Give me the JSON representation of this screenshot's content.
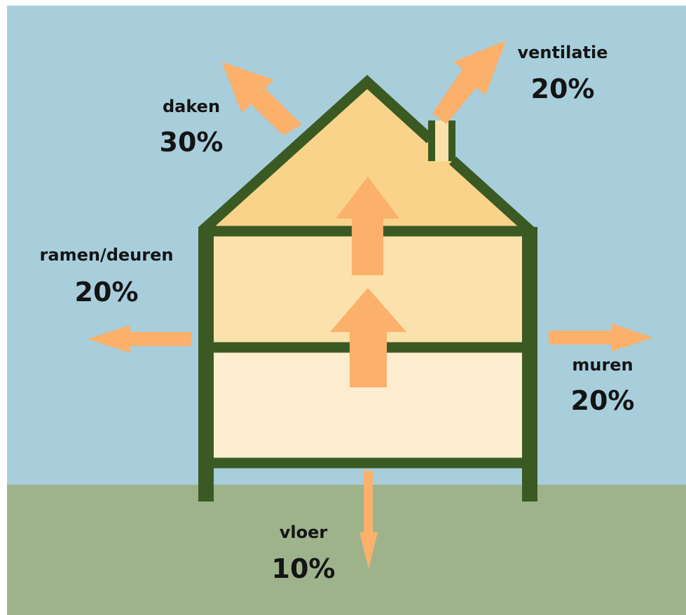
{
  "colors": {
    "sky": "#a8cedc",
    "ground": "#9eb38b",
    "frame": "#3b5a23",
    "roof_fill": "#f9d38a",
    "floor_upper": "#fbe1ab",
    "floor_lower": "#fdedcf",
    "arrow": "#fbb06b",
    "text": "#141414"
  },
  "losses": [
    {
      "id": "daken",
      "name": "daken",
      "value": "30%",
      "percent": 30
    },
    {
      "id": "ventilatie",
      "name": "ventilatie",
      "value": "20%",
      "percent": 20
    },
    {
      "id": "ramen",
      "name": "ramen/deuren",
      "value": "20%",
      "percent": 20
    },
    {
      "id": "muren",
      "name": "muren",
      "value": "20%",
      "percent": 20
    },
    {
      "id": "vloer",
      "name": "vloer",
      "value": "10%",
      "percent": 10
    }
  ]
}
